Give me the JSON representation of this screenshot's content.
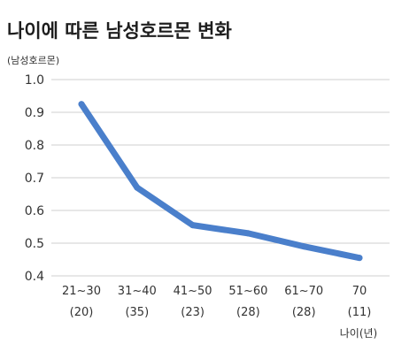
{
  "chart_data": {
    "type": "line",
    "title": "나이에 따른 남성호르몬 변화",
    "ylabel": "(남성호르몬)",
    "xlabel": "나이(년)",
    "categories": [
      "21~30",
      "31~40",
      "41~50",
      "51~60",
      "61~70",
      "70"
    ],
    "sample_sizes": [
      "(20)",
      "(35)",
      "(23)",
      "(28)",
      "(28)",
      "(11)"
    ],
    "series": [
      {
        "values": [
          0.925,
          0.67,
          0.555,
          0.53,
          0.49,
          0.455
        ]
      }
    ],
    "ylim": [
      0.4,
      1.0
    ],
    "yticks": [
      "1.0",
      "0.9",
      "0.8",
      "0.7",
      "0.6",
      "0.5",
      "0.4"
    ],
    "grid": true,
    "line_color": "#4a7fcb",
    "grid_color": "#cfcfcf"
  }
}
